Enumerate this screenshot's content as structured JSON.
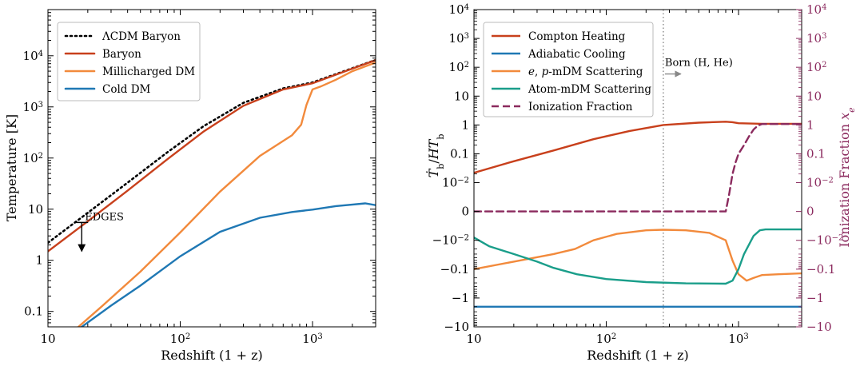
{
  "chart_data": [
    {
      "type": "line",
      "xscale": "log",
      "yscale": "log",
      "xlim": [
        10,
        3000
      ],
      "ylim": [
        0.05,
        80000
      ],
      "xlabel": "Redshift (1 + z)",
      "ylabel": "Temperature [K]",
      "x_ticks": [
        {
          "value": 10,
          "label": "10"
        },
        {
          "value": 100,
          "label": "10",
          "sup": "2"
        },
        {
          "value": 1000,
          "label": "10",
          "sup": "3"
        }
      ],
      "y_ticks": [
        {
          "value": 0.1,
          "label": "0.1"
        },
        {
          "value": 1,
          "label": "1"
        },
        {
          "value": 10,
          "label": "10"
        },
        {
          "value": 100,
          "label": "10",
          "sup": "2"
        },
        {
          "value": 1000,
          "label": "10",
          "sup": "3"
        },
        {
          "value": 10000,
          "label": "10",
          "sup": "4"
        }
      ],
      "legend_position": "top-left",
      "series": [
        {
          "name": "ΛCDM Baryon",
          "color": "#000000",
          "style": "dotted",
          "x": [
            10,
            20,
            40,
            80,
            150,
            300,
            600,
            1000,
            2000,
            3000
          ],
          "y": [
            2.2,
            8.5,
            33,
            130,
            420,
            1200,
            2300,
            3000,
            5700,
            8300
          ]
        },
        {
          "name": "Baryon",
          "color": "#c8401c",
          "style": "solid",
          "x": [
            10,
            20,
            40,
            80,
            150,
            300,
            600,
            1000,
            2000,
            3000
          ],
          "y": [
            1.5,
            5.8,
            23,
            95,
            330,
            1050,
            2200,
            2900,
            5600,
            8200
          ]
        },
        {
          "name": "Millicharged DM",
          "color": "#f28a3c",
          "style": "solid",
          "x": [
            17,
            25,
            50,
            100,
            200,
            400,
            700,
            820,
            900,
            1000,
            1150,
            1500,
            2000,
            3000
          ],
          "y": [
            0.05,
            0.12,
            0.6,
            3.5,
            22,
            110,
            280,
            450,
            1100,
            2200,
            2500,
            3400,
            5000,
            7400
          ]
        },
        {
          "name": "Cold DM",
          "color": "#1f78b4",
          "style": "solid",
          "x": [
            18,
            30,
            50,
            100,
            200,
            400,
            700,
            1000,
            1500,
            2500,
            3000
          ],
          "y": [
            0.05,
            0.13,
            0.32,
            1.2,
            3.6,
            6.8,
            8.8,
            9.8,
            11.5,
            13,
            12
          ]
        }
      ],
      "annotations": [
        {
          "text": "EDGES",
          "x": 18,
          "y": 5.5,
          "arrow": "down",
          "arrow_to": 1.5
        }
      ]
    },
    {
      "type": "line",
      "xscale": "log",
      "yscale": "symlog",
      "xlim": [
        10,
        3000
      ],
      "xlabel": "Redshift (1 + z)",
      "ylabel": "Ṫb/HTb",
      "y2label": "Ionization Fraction x_e",
      "y2color": "#8b2a5e",
      "x_ticks": [
        {
          "value": 10,
          "label": "10"
        },
        {
          "value": 100,
          "label": "10",
          "sup": "2"
        },
        {
          "value": 1000,
          "label": "10",
          "sup": "3"
        }
      ],
      "y_ticks": [
        {
          "level": 7,
          "label": "10",
          "sup": "4"
        },
        {
          "level": 6,
          "label": "10",
          "sup": "3"
        },
        {
          "level": 5,
          "label": "10",
          "sup": "2"
        },
        {
          "level": 4,
          "label": "10"
        },
        {
          "level": 3,
          "label": "1"
        },
        {
          "level": 2,
          "label": "0.1"
        },
        {
          "level": 1,
          "label": "10",
          "sup": "−2"
        },
        {
          "level": 0,
          "label": "0"
        },
        {
          "level": -1,
          "label": "−10",
          "sup": "−2"
        },
        {
          "level": -2,
          "label": "−0.1"
        },
        {
          "level": -3,
          "label": "−1"
        },
        {
          "level": -4,
          "label": "−10"
        }
      ],
      "y2_ticks": [
        {
          "level": 7,
          "label": "10",
          "sup": "4"
        },
        {
          "level": 6,
          "label": "10",
          "sup": "3"
        },
        {
          "level": 5,
          "label": "10",
          "sup": "2"
        },
        {
          "level": 4,
          "label": "10"
        },
        {
          "level": 3,
          "label": "1"
        },
        {
          "level": 2,
          "label": "0.1"
        },
        {
          "level": 1,
          "label": "10",
          "sup": "−2"
        },
        {
          "level": 0,
          "label": "0"
        },
        {
          "level": -1,
          "label": "−10",
          "sup": "−2"
        },
        {
          "level": -2,
          "label": "−0.1"
        },
        {
          "level": -3,
          "label": "−1"
        },
        {
          "level": -4,
          "label": "−10"
        }
      ],
      "ylim_levels": [
        -4,
        7
      ],
      "legend_position": "top-left",
      "series": [
        {
          "name": "Compton Heating",
          "color": "#c8401c",
          "style": "solid",
          "x": [
            10,
            20,
            40,
            80,
            150,
            270,
            500,
            800,
            900,
            1000,
            1500,
            3000
          ],
          "y": [
            0.022,
            0.055,
            0.13,
            0.32,
            0.62,
            1.0,
            1.2,
            1.3,
            1.25,
            1.15,
            1.1,
            1.1
          ]
        },
        {
          "name": "Adiabatic Cooling",
          "color": "#1f78b4",
          "style": "solid",
          "x": [
            10,
            3000
          ],
          "y": [
            -2,
            -2
          ]
        },
        {
          "name": "e, p-mDM Scattering",
          "color": "#f28a3c",
          "style": "solid",
          "x": [
            10,
            20,
            40,
            58,
            80,
            120,
            200,
            270,
            400,
            600,
            800,
            900,
            1000,
            1150,
            1300,
            1500,
            2000,
            3000
          ],
          "y": [
            -0.1,
            -0.055,
            -0.03,
            -0.02,
            -0.01,
            -0.006,
            -0.0045,
            -0.0043,
            -0.0045,
            -0.0055,
            -0.01,
            -0.05,
            -0.15,
            -0.25,
            -0.2,
            -0.16,
            -0.15,
            -0.14
          ]
        },
        {
          "name": "Atom-mDM Scattering",
          "color": "#1a9e8a",
          "style": "solid",
          "x": [
            10,
            13,
            20,
            30,
            40,
            60,
            100,
            200,
            400,
            800,
            900,
            1000,
            1100,
            1300,
            1450,
            1600,
            3000
          ],
          "y": [
            -0.008,
            -0.016,
            -0.03,
            -0.055,
            -0.09,
            -0.15,
            -0.22,
            -0.28,
            -0.31,
            -0.32,
            -0.25,
            -0.1,
            -0.03,
            -0.007,
            -0.0045,
            -0.0042,
            -0.0042
          ]
        },
        {
          "name": "Ionization Fraction",
          "color": "#8b2a5e",
          "style": "dashed",
          "axis": "right",
          "x": [
            10,
            50,
            100,
            300,
            600,
            800,
            850,
            900,
            950,
            1000,
            1100,
            1200,
            1300,
            1400,
            1500,
            2000,
            3000
          ],
          "y": [
            0.0002,
            0.0002,
            0.0002,
            0.0002,
            0.0003,
            0.001,
            0.004,
            0.02,
            0.05,
            0.1,
            0.2,
            0.4,
            0.7,
            0.95,
            1.08,
            1.08,
            1.08
          ]
        }
      ],
      "vline": {
        "x": 270,
        "style": "dotted",
        "color": "#888888"
      },
      "annotations": [
        {
          "text": "Born (H, He)",
          "x": 270,
          "level": 4.88,
          "color": "#888888",
          "arrow": "right"
        }
      ]
    }
  ]
}
